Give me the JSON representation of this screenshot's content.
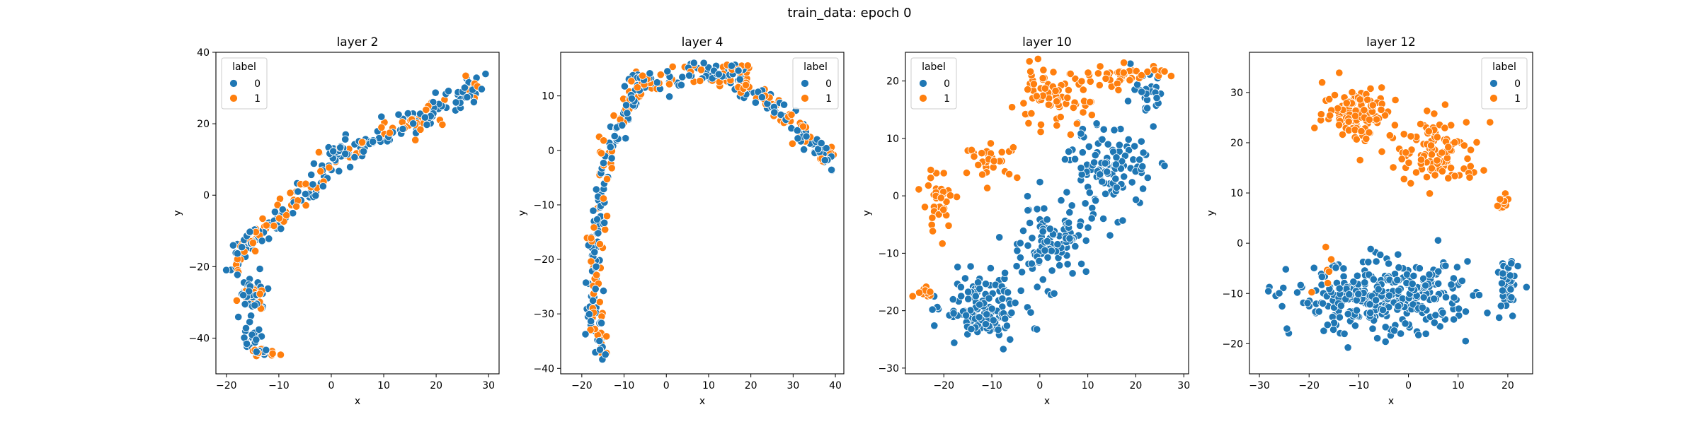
{
  "figure": {
    "suptitle": "train_data: epoch 0"
  },
  "colors": {
    "label_0": "#1f77b4",
    "label_1": "#ff7f0e",
    "marker_edge": "#ffffff"
  },
  "chart_data": [
    {
      "type": "scatter",
      "title": "layer 2",
      "xlabel": "x",
      "ylabel": "y",
      "xlim": [
        -22,
        32
      ],
      "ylim": [
        -50,
        40
      ],
      "xticks": [
        -20,
        -10,
        0,
        10,
        20,
        30
      ],
      "yticks": [
        -40,
        -20,
        0,
        20,
        40
      ],
      "grid": false,
      "legend": {
        "title": "label",
        "location": "top-left",
        "entries": [
          "0",
          "1"
        ]
      },
      "trend_points": [
        [
          -19,
          -22
        ],
        [
          -17,
          -14
        ],
        [
          -14,
          -12
        ],
        [
          -11,
          -7
        ],
        [
          -7,
          -2
        ],
        [
          -3,
          4
        ],
        [
          1,
          10
        ],
        [
          6,
          14
        ],
        [
          12,
          19
        ],
        [
          18,
          22
        ],
        [
          24,
          27
        ],
        [
          29,
          33
        ]
      ],
      "cluster_points": [
        {
          "center": [
            -15,
            -28
          ],
          "spread": [
            2.0,
            4.0
          ],
          "n": 55,
          "label_1_share": 0.3
        },
        {
          "center": [
            -15,
            -40
          ],
          "spread": [
            1.5,
            3.0
          ],
          "n": 20,
          "label_1_share": 0.2
        },
        {
          "center": [
            -13,
            -44
          ],
          "spread": [
            2.0,
            1.0
          ],
          "n": 25,
          "label_1_share": 0.55
        },
        {
          "center": [
            1,
            12
          ],
          "spread": [
            1.5,
            2.0
          ],
          "n": 14,
          "label_1_share": 0.1
        }
      ],
      "series": [
        {
          "name": "0",
          "n": 250
        },
        {
          "name": "1",
          "n": 130
        }
      ]
    },
    {
      "type": "scatter",
      "title": "layer 4",
      "xlabel": "x",
      "ylabel": "y",
      "xlim": [
        -25,
        42
      ],
      "ylim": [
        -41,
        18
      ],
      "xticks": [
        -20,
        -10,
        0,
        10,
        20,
        30,
        40
      ],
      "yticks": [
        -40,
        -30,
        -20,
        -10,
        0,
        10
      ],
      "grid": false,
      "legend": {
        "title": "label",
        "location": "top-right",
        "entries": [
          "0",
          "1"
        ]
      },
      "trend_points": [
        [
          -15,
          -38
        ],
        [
          -17,
          -30
        ],
        [
          -17,
          -20
        ],
        [
          -16,
          -10
        ],
        [
          -14,
          0
        ],
        [
          -10,
          7
        ],
        [
          -5,
          12
        ],
        [
          5,
          14
        ],
        [
          15,
          14
        ],
        [
          22,
          10
        ],
        [
          30,
          5
        ],
        [
          35,
          1
        ],
        [
          39,
          -2
        ]
      ],
      "cluster_points": [
        {
          "center": [
            -6,
            13
          ],
          "spread": [
            3.0,
            1.2
          ],
          "n": 18,
          "label_1_share": 0.2
        },
        {
          "center": [
            17,
            15
          ],
          "spread": [
            2.5,
            1.0
          ],
          "n": 14,
          "label_1_share": 0.5
        }
      ],
      "series": [
        {
          "name": "0",
          "n": 260
        },
        {
          "name": "1",
          "n": 140
        }
      ]
    },
    {
      "type": "scatter",
      "title": "layer 10",
      "xlabel": "x",
      "ylabel": "y",
      "xlim": [
        -28,
        31
      ],
      "ylim": [
        -31,
        25
      ],
      "xticks": [
        -20,
        -10,
        0,
        10,
        20,
        30
      ],
      "yticks": [
        -30,
        -20,
        -10,
        0,
        10,
        20
      ],
      "grid": false,
      "legend": {
        "title": "label",
        "location": "top-left",
        "entries": [
          "0",
          "1"
        ]
      },
      "cluster_points": [
        {
          "label": "0",
          "center": [
            -12,
            -20
          ],
          "spread": [
            6.0,
            4.0
          ],
          "n": 130
        },
        {
          "label": "0",
          "center": [
            2,
            -8
          ],
          "spread": [
            7.0,
            5.0
          ],
          "n": 110
        },
        {
          "label": "0",
          "center": [
            15,
            5
          ],
          "spread": [
            6.0,
            5.0
          ],
          "n": 110
        },
        {
          "label": "0",
          "center": [
            22,
            17
          ],
          "spread": [
            3.0,
            3.0
          ],
          "n": 30
        },
        {
          "label": "1",
          "center": [
            2,
            17
          ],
          "spread": [
            6.0,
            3.5
          ],
          "n": 70
        },
        {
          "label": "1",
          "center": [
            17,
            21
          ],
          "spread": [
            7.0,
            1.5
          ],
          "n": 40
        },
        {
          "label": "1",
          "center": [
            -10,
            6
          ],
          "spread": [
            4.0,
            2.0
          ],
          "n": 30
        },
        {
          "label": "1",
          "center": [
            -21,
            -1
          ],
          "spread": [
            2.5,
            4.0
          ],
          "n": 35
        },
        {
          "label": "1",
          "center": [
            -24,
            -16
          ],
          "spread": [
            1.5,
            1.2
          ],
          "n": 10
        }
      ],
      "series": [
        {
          "name": "0",
          "n": 380
        },
        {
          "name": "1",
          "n": 185
        }
      ]
    },
    {
      "type": "scatter",
      "title": "layer 12",
      "xlabel": "x",
      "ylabel": "y",
      "xlim": [
        -32,
        25
      ],
      "ylim": [
        -26,
        38
      ],
      "xticks": [
        -30,
        -20,
        -10,
        0,
        10,
        20
      ],
      "yticks": [
        -20,
        -10,
        0,
        10,
        20,
        30
      ],
      "grid": false,
      "legend": {
        "title": "label",
        "location": "top-right",
        "entries": [
          "0",
          "1"
        ]
      },
      "cluster_points": [
        {
          "label": "1",
          "center": [
            -10,
            26
          ],
          "spread": [
            5.0,
            4.0
          ],
          "n": 110
        },
        {
          "label": "1",
          "center": [
            6,
            18
          ],
          "spread": [
            6.0,
            5.0
          ],
          "n": 110
        },
        {
          "label": "1",
          "center": [
            19,
            8
          ],
          "spread": [
            1.0,
            2.0
          ],
          "n": 12
        },
        {
          "label": "0",
          "center": [
            -5,
            -11
          ],
          "spread": [
            13.0,
            5.0
          ],
          "n": 330
        },
        {
          "label": "0",
          "center": [
            20,
            -9
          ],
          "spread": [
            1.5,
            4.5
          ],
          "n": 40
        },
        {
          "label": "1",
          "center": [
            -18,
            -6
          ],
          "spread": [
            2.0,
            5.0
          ],
          "n": 6
        }
      ],
      "series": [
        {
          "name": "0",
          "n": 370
        },
        {
          "name": "1",
          "n": 238
        }
      ]
    }
  ]
}
